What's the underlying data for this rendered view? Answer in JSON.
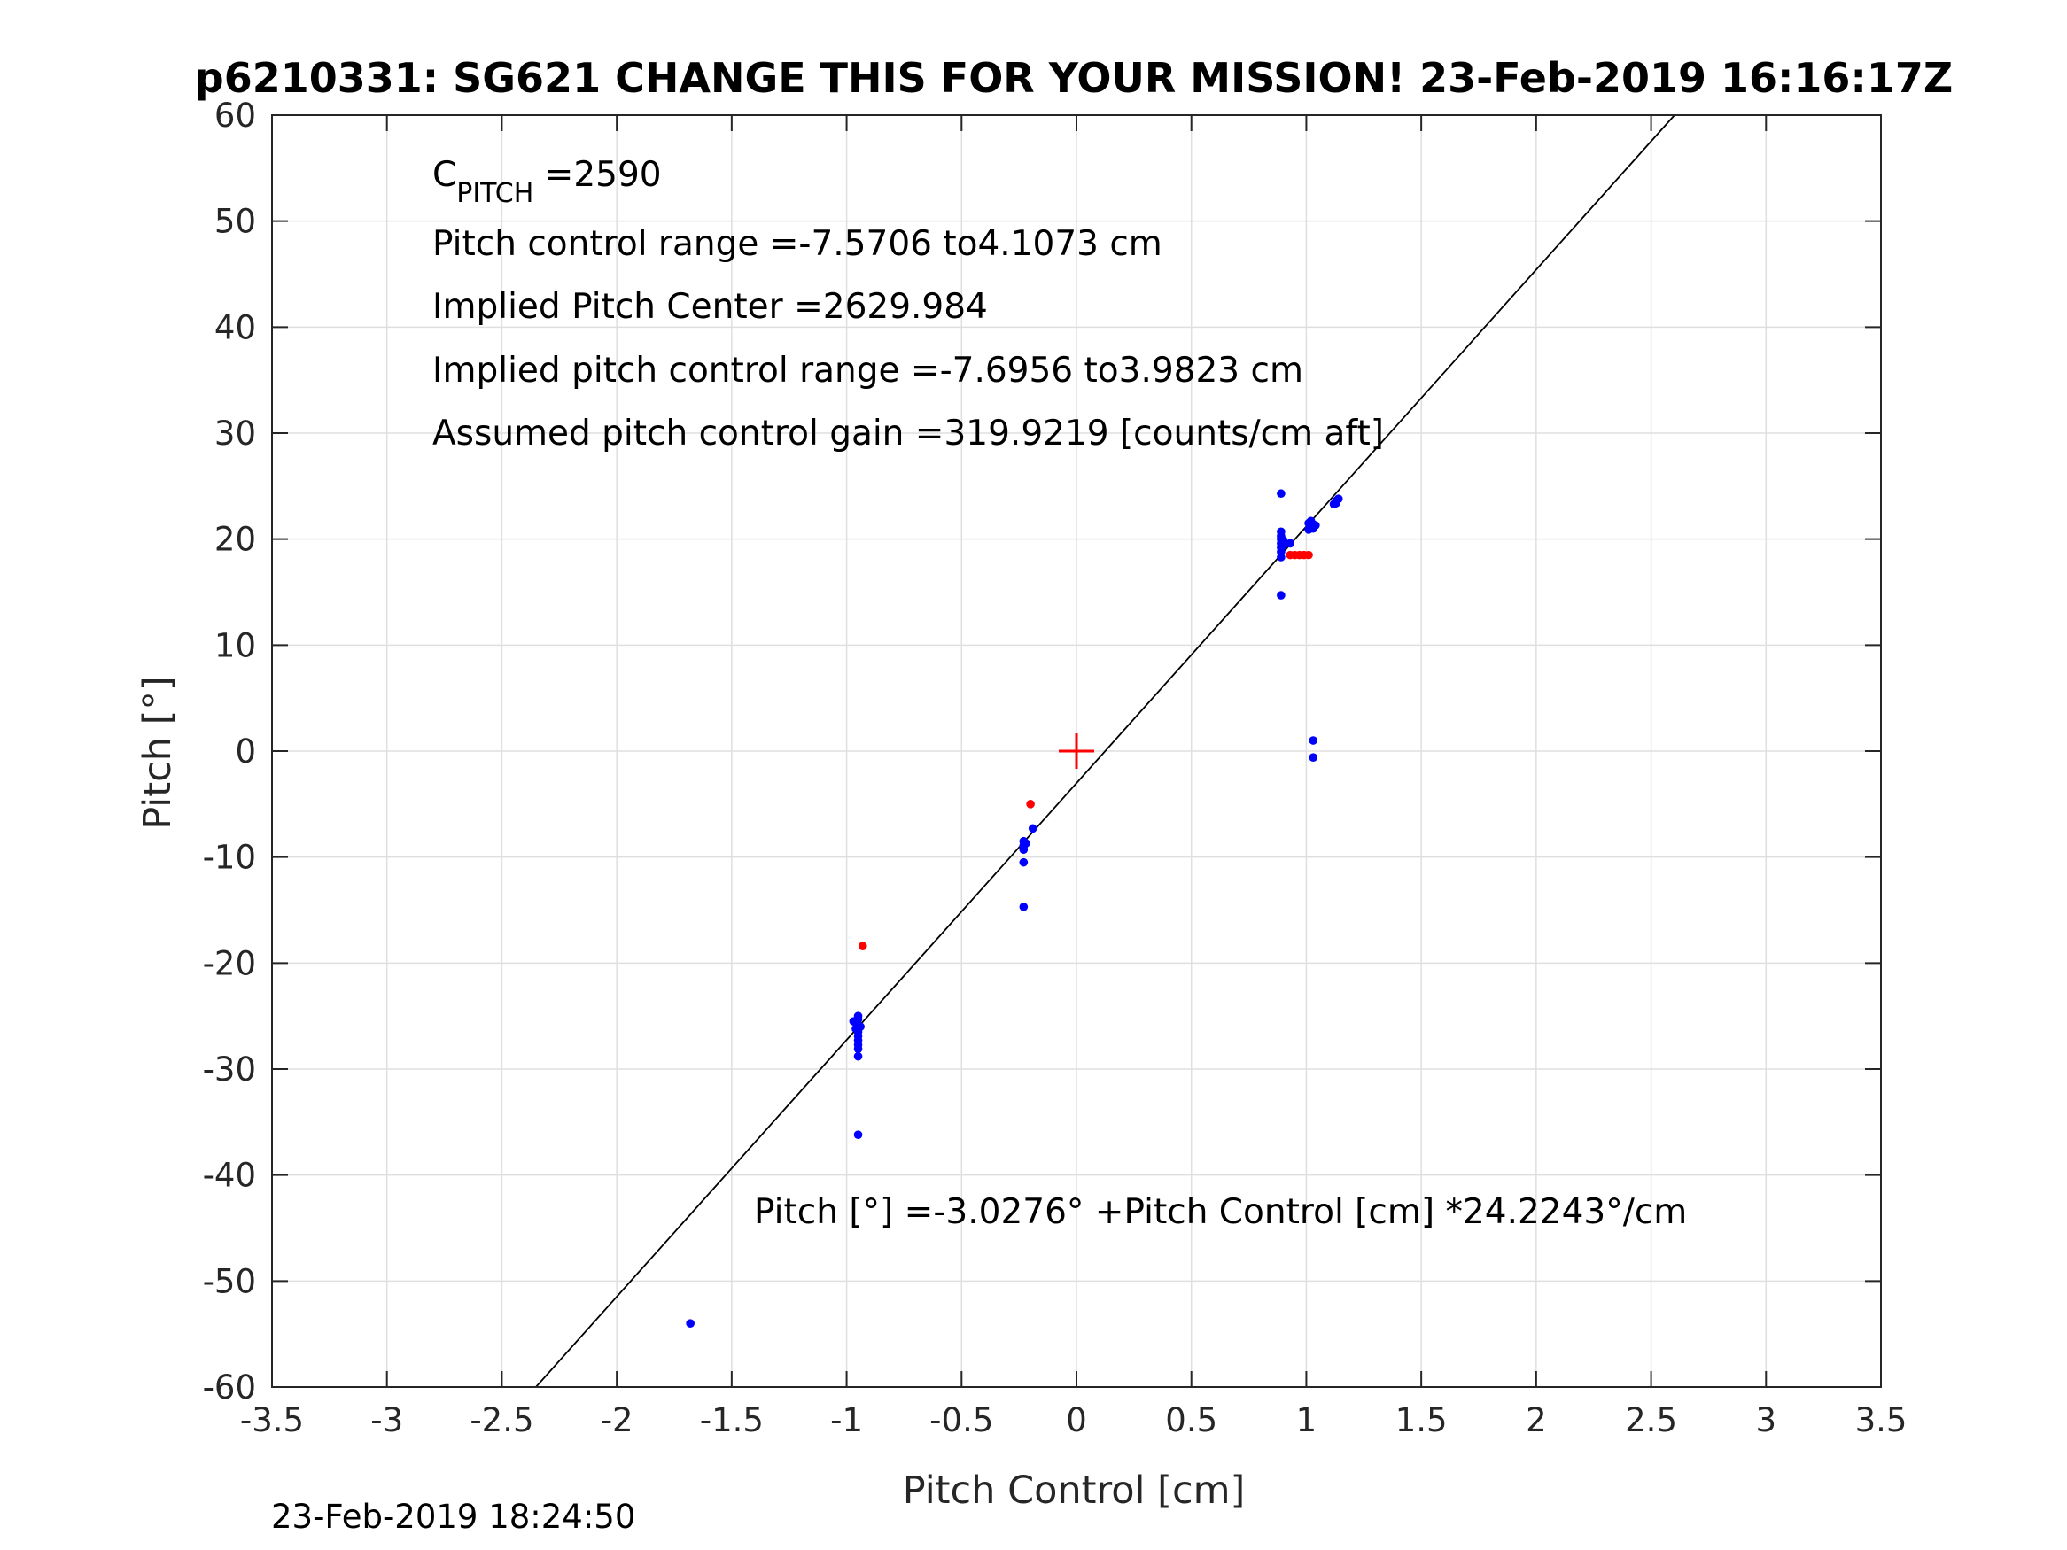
{
  "chart_data": {
    "type": "scatter",
    "title": "p6210331: SG621 CHANGE THIS FOR YOUR MISSION! 23-Feb-2019 16:16:17Z",
    "xlabel": "Pitch Control [cm]",
    "ylabel": "Pitch [°]",
    "xlim": [
      -3.5,
      3.5
    ],
    "ylim": [
      -60,
      60
    ],
    "xticks": [
      -3.5,
      -3,
      -2.5,
      -2,
      -1.5,
      -1,
      -0.5,
      0,
      0.5,
      1,
      1.5,
      2,
      2.5,
      3,
      3.5
    ],
    "yticks": [
      -60,
      -50,
      -40,
      -30,
      -20,
      -10,
      0,
      10,
      20,
      30,
      40,
      50,
      60
    ],
    "grid": true,
    "annotations": {
      "c_pitch_symbol": "C",
      "c_pitch_subscript": "PITCH",
      "c_pitch_value": " =2590",
      "pitch_control_range": "Pitch control range =-7.5706 to4.1073 cm",
      "implied_pitch_center": "Implied Pitch Center =2629.984",
      "implied_pitch_control_range": "Implied pitch control range =-7.6956 to3.9823 cm",
      "assumed_gain": "Assumed pitch control gain =319.9219 [counts/cm aft]",
      "fit_equation": "Pitch [°] =-3.0276° +Pitch Control [cm] *24.2243°/cm"
    },
    "fit_line": {
      "intercept": -3.0276,
      "slope": 24.2243,
      "color": "#000000"
    },
    "center_marker": {
      "x": 0,
      "y": 0,
      "color": "#ff0000"
    },
    "series": [
      {
        "color": "#0000ff",
        "points": [
          [
            -0.95,
            -25.0
          ],
          [
            -0.95,
            -25.3
          ],
          [
            -0.96,
            -25.6
          ],
          [
            -0.95,
            -25.9
          ],
          [
            -0.96,
            -26.2
          ],
          [
            -0.95,
            -26.5
          ],
          [
            -0.95,
            -26.9
          ],
          [
            -0.95,
            -27.3
          ],
          [
            -0.95,
            -27.7
          ],
          [
            -0.95,
            -28.1
          ],
          [
            -0.97,
            -25.5
          ],
          [
            -0.94,
            -26.0
          ],
          [
            -0.95,
            -28.8
          ],
          [
            -0.95,
            -36.2
          ],
          [
            -0.23,
            -8.5
          ],
          [
            -0.23,
            -8.9
          ],
          [
            -0.23,
            -9.3
          ],
          [
            -0.22,
            -8.7
          ],
          [
            -0.23,
            -9.0
          ],
          [
            -0.19,
            -7.3
          ],
          [
            -0.23,
            -10.5
          ],
          [
            -0.23,
            -14.7
          ],
          [
            0.89,
            18.3
          ],
          [
            0.89,
            18.8
          ],
          [
            0.89,
            19.2
          ],
          [
            0.89,
            19.6
          ],
          [
            0.89,
            20.0
          ],
          [
            0.89,
            20.3
          ],
          [
            0.89,
            20.7
          ],
          [
            0.9,
            19.4
          ],
          [
            0.9,
            19.9
          ],
          [
            0.93,
            19.6
          ],
          [
            0.89,
            24.3
          ],
          [
            0.89,
            14.7
          ],
          [
            1.01,
            20.9
          ],
          [
            1.02,
            21.2
          ],
          [
            1.03,
            21.4
          ],
          [
            1.02,
            21.7
          ],
          [
            1.03,
            21.0
          ],
          [
            1.01,
            21.5
          ],
          [
            1.04,
            21.3
          ],
          [
            1.12,
            23.3
          ],
          [
            1.13,
            23.6
          ],
          [
            1.14,
            23.8
          ],
          [
            1.13,
            23.4
          ],
          [
            1.03,
            1.0
          ],
          [
            1.03,
            -0.6
          ],
          [
            -1.68,
            -54.0
          ]
        ]
      },
      {
        "color": "#ff0000",
        "points": [
          [
            0.93,
            18.5
          ],
          [
            0.95,
            18.5
          ],
          [
            0.97,
            18.5
          ],
          [
            0.99,
            18.5
          ],
          [
            1.01,
            18.5
          ],
          [
            -0.2,
            -5.0
          ],
          [
            -0.93,
            -18.4
          ]
        ]
      }
    ]
  },
  "timestamp": "23-Feb-2019 18:24:50"
}
